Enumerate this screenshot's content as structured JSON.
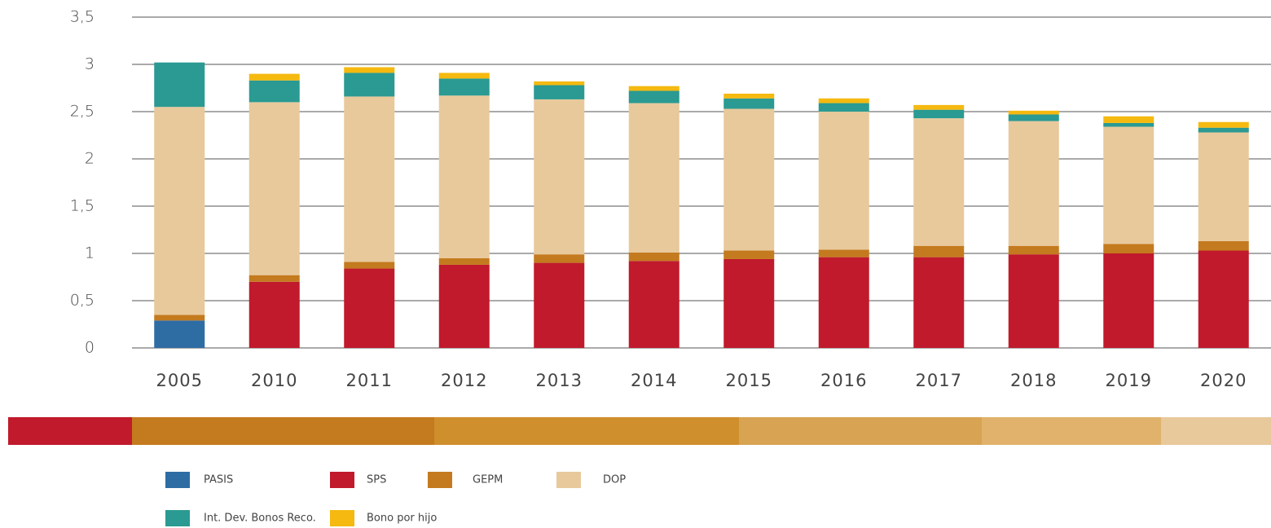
{
  "chart_data": {
    "type": "stacked_bar",
    "categories": [
      "2005",
      "2010",
      "2011",
      "2012",
      "2013",
      "2014",
      "2015",
      "2016",
      "2017",
      "2018",
      "2019",
      "2020"
    ],
    "series": [
      {
        "name": "PASIS",
        "color": "#2e6da4",
        "values": [
          0.29,
          0,
          0,
          0,
          0,
          0,
          0,
          0,
          0,
          0,
          0,
          0
        ]
      },
      {
        "name": "SPS",
        "color": "#c01a2c",
        "values": [
          0,
          0.7,
          0.84,
          0.88,
          0.9,
          0.92,
          0.94,
          0.96,
          0.96,
          0.99,
          1.0,
          1.03
        ]
      },
      {
        "name": "GEPM",
        "color": "#c47a1e",
        "values": [
          0.06,
          0.07,
          0.07,
          0.07,
          0.09,
          0.09,
          0.09,
          0.08,
          0.12,
          0.09,
          0.1,
          0.1
        ]
      },
      {
        "name": "DOP",
        "color": "#e8c99c",
        "values": [
          2.2,
          1.83,
          1.75,
          1.72,
          1.64,
          1.58,
          1.5,
          1.46,
          1.35,
          1.32,
          1.24,
          1.15
        ]
      },
      {
        "name": "Int. Dev. Bonos Reco.",
        "color": "#2a9a92",
        "values": [
          0.47,
          0.23,
          0.25,
          0.18,
          0.15,
          0.13,
          0.11,
          0.09,
          0.09,
          0.07,
          0.04,
          0.05
        ]
      },
      {
        "name": "Bono por hijo",
        "color": "#f5b90f",
        "values": [
          0,
          0.07,
          0.06,
          0.06,
          0.04,
          0.05,
          0.05,
          0.05,
          0.05,
          0.04,
          0.07,
          0.06
        ]
      }
    ],
    "ylim": [
      0,
      3.5
    ],
    "yticks": [
      0,
      {
        "value": 0.5,
        "label": "0,5"
      },
      1,
      {
        "value": 1.5,
        "label": "1,5"
      },
      2,
      {
        "value": 2.5,
        "label": "2,5"
      },
      3,
      {
        "value": 3.5,
        "label": "3,5"
      }
    ],
    "grid": true
  }
}
